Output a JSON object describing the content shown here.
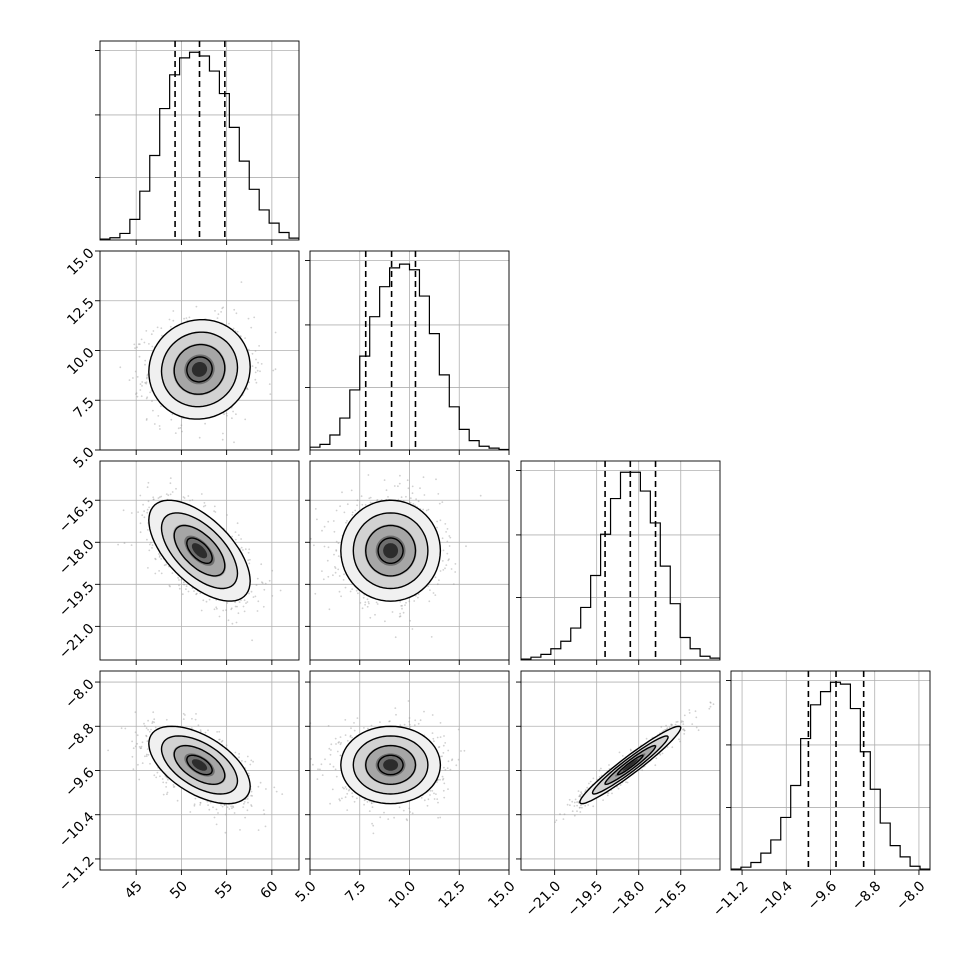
{
  "chart_data": {
    "type": "corner",
    "title": "",
    "grid": true,
    "params": [
      {
        "range": [
          41,
          63
        ],
        "ticks": [
          45,
          50,
          55,
          60
        ],
        "tick_labels": [
          "45",
          "50",
          "55",
          "60"
        ],
        "quantiles": [
          49.3,
          52.0,
          54.8
        ],
        "hist": [
          0.005,
          0.012,
          0.035,
          0.11,
          0.26,
          0.45,
          0.7,
          0.88,
          0.97,
          1.0,
          0.98,
          0.9,
          0.78,
          0.6,
          0.42,
          0.27,
          0.16,
          0.09,
          0.04,
          0.01
        ],
        "hist_range": [
          41,
          63
        ]
      },
      {
        "range": [
          5,
          15
        ],
        "ticks": [
          5,
          7.5,
          10,
          12.5,
          15
        ],
        "tick_labels": [
          "5.0",
          "7.5",
          "10.0",
          "12.5",
          "15.0"
        ],
        "quantiles": [
          7.8,
          9.1,
          10.3
        ],
        "hist": [
          0.015,
          0.03,
          0.08,
          0.17,
          0.32,
          0.5,
          0.71,
          0.87,
          0.97,
          0.99,
          0.96,
          0.82,
          0.62,
          0.4,
          0.23,
          0.11,
          0.05,
          0.02,
          0.01,
          0.003
        ],
        "hist_range": [
          5,
          15
        ]
      },
      {
        "range": [
          -22.2,
          -15.1
        ],
        "ticks": [
          -21,
          -19.5,
          -18,
          -16.5
        ],
        "tick_labels": [
          "−21.0",
          "−19.5",
          "−18.0",
          "−16.5"
        ],
        "quantiles": [
          -19.2,
          -18.3,
          -17.4
        ],
        "hist": [
          0.005,
          0.015,
          0.03,
          0.06,
          0.1,
          0.17,
          0.28,
          0.45,
          0.67,
          0.86,
          1.0,
          1.0,
          0.9,
          0.73,
          0.5,
          0.3,
          0.12,
          0.06,
          0.02,
          0.01
        ],
        "hist_range": [
          -22.2,
          -15.1
        ]
      },
      {
        "range": [
          -11.4,
          -7.8
        ],
        "ticks": [
          -11.2,
          -10.4,
          -9.6,
          -8.8,
          -8.0
        ],
        "tick_labels": [
          "−11.2",
          "−10.4",
          "−9.6",
          "−8.8",
          "−8.0"
        ],
        "quantiles": [
          -10.0,
          -9.5,
          -9.0
        ],
        "hist": [
          0.005,
          0.015,
          0.04,
          0.09,
          0.16,
          0.28,
          0.45,
          0.7,
          0.88,
          0.95,
          1.0,
          0.99,
          0.86,
          0.63,
          0.43,
          0.25,
          0.13,
          0.07,
          0.02,
          0.005
        ],
        "hist_range": [
          -11.4,
          -7.8
        ]
      }
    ],
    "pairs": [
      {
        "row": 1,
        "col": 0,
        "center": [
          52.0,
          9.05
        ],
        "sd": [
          2.8,
          1.25
        ],
        "rho": 0.05
      },
      {
        "row": 2,
        "col": 0,
        "center": [
          52.0,
          -18.3
        ],
        "sd": [
          2.8,
          0.9
        ],
        "rho": -0.6
      },
      {
        "row": 2,
        "col": 1,
        "center": [
          9.05,
          -18.3
        ],
        "sd": [
          1.25,
          0.9
        ],
        "rho": 0.0
      },
      {
        "row": 3,
        "col": 0,
        "center": [
          52.0,
          -9.5
        ],
        "sd": [
          2.8,
          0.35
        ],
        "rho": -0.55
      },
      {
        "row": 3,
        "col": 1,
        "center": [
          9.05,
          -9.5
        ],
        "sd": [
          1.25,
          0.35
        ],
        "rho": 0.0
      },
      {
        "row": 3,
        "col": 2,
        "center": [
          -18.3,
          -9.5
        ],
        "sd": [
          0.9,
          0.35
        ],
        "rho": 0.96
      }
    ],
    "contour_levels": [
      0.118,
      0.393,
      0.675,
      0.865
    ],
    "colors": {
      "hist": "#000000",
      "contour": "#000000",
      "points": "#9a9a9a",
      "grid": "#b0b0b0"
    }
  }
}
